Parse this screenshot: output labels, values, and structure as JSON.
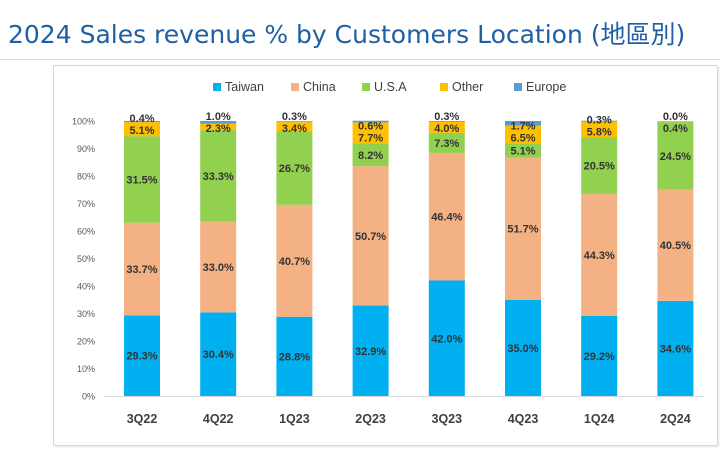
{
  "page": {
    "title": "2024 Sales revenue % by Customers Location (地區別)"
  },
  "chart_data": {
    "type": "bar",
    "stacked": true,
    "title": "2024 Sales revenue % by Customers Location (地區別)",
    "xlabel": "",
    "ylabel": "",
    "ylim": [
      0,
      100
    ],
    "yticks": [
      "0%",
      "10%",
      "20%",
      "30%",
      "40%",
      "50%",
      "60%",
      "70%",
      "80%",
      "90%",
      "100%"
    ],
    "grid": false,
    "legend_position": "top",
    "categories": [
      "3Q22",
      "4Q22",
      "1Q23",
      "2Q23",
      "3Q23",
      "4Q23",
      "1Q24",
      "2Q24"
    ],
    "series": [
      {
        "name": "Taiwan",
        "color": "#00b0f0",
        "values": [
          29.3,
          30.4,
          28.8,
          32.9,
          42.0,
          35.0,
          29.2,
          34.6
        ]
      },
      {
        "name": "China",
        "color": "#f4b183",
        "values": [
          33.7,
          33.0,
          40.7,
          50.7,
          46.4,
          51.7,
          44.3,
          40.5
        ]
      },
      {
        "name": "U.S.A",
        "color": "#92d050",
        "values": [
          31.5,
          33.3,
          26.7,
          8.2,
          7.3,
          5.1,
          20.5,
          24.5
        ]
      },
      {
        "name": "Other",
        "color": "#ffc000",
        "values": [
          5.1,
          2.3,
          3.4,
          7.7,
          4.0,
          6.5,
          5.8,
          0.4
        ]
      },
      {
        "name": "Europe",
        "color": "#5b9bd5",
        "values": [
          0.4,
          1.0,
          0.3,
          0.6,
          0.3,
          1.7,
          0.3,
          0.0
        ]
      }
    ]
  }
}
